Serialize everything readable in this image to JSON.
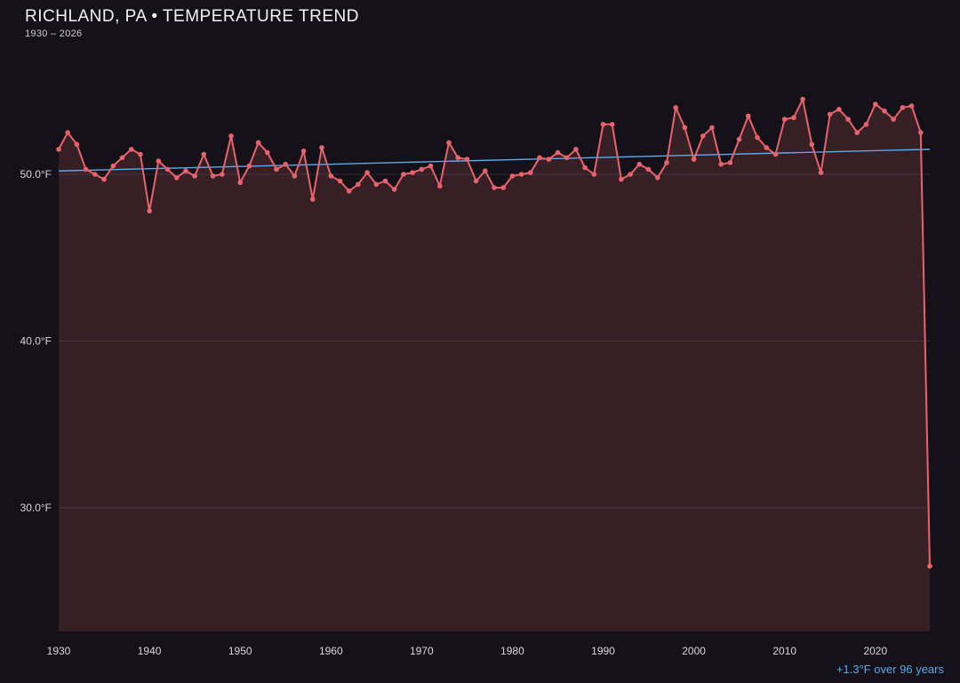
{
  "header": {
    "title": "RICHLAND, PA • TEMPERATURE TREND",
    "subtitle": "1930 – 2026"
  },
  "footer": {
    "trend_note": "+1.3°F over 96 years"
  },
  "colors": {
    "background": "#141119",
    "line": "#e8636b",
    "point": "#e8636b",
    "area_fill": "#e8636b",
    "trend_line": "#5da9e8",
    "grid": "#ffffff",
    "tick_label": "#d9d5de",
    "title": "#f4f3f6",
    "annotation": "#5da9e8"
  },
  "chart_data": {
    "type": "line",
    "title": "RICHLAND, PA • TEMPERATURE TREND",
    "subtitle": "1930 – 2026",
    "xlabel": "",
    "ylabel": "",
    "legend_position": "none",
    "grid": true,
    "x_ticks": [
      1930,
      1940,
      1950,
      1960,
      1970,
      1980,
      1990,
      2000,
      2010,
      2020
    ],
    "y_ticks": [
      {
        "value": 50,
        "label": "50.0°F"
      },
      {
        "value": 40,
        "label": "40.0°F"
      },
      {
        "value": 30,
        "label": "30.0°F"
      }
    ],
    "x_range": [
      1930,
      2026
    ],
    "ylim": [
      22.6,
      57.3
    ],
    "x": [
      1930,
      1931,
      1932,
      1933,
      1934,
      1935,
      1936,
      1937,
      1938,
      1939,
      1940,
      1941,
      1942,
      1943,
      1944,
      1945,
      1946,
      1947,
      1948,
      1949,
      1950,
      1951,
      1952,
      1953,
      1954,
      1955,
      1956,
      1957,
      1958,
      1959,
      1960,
      1961,
      1962,
      1963,
      1964,
      1965,
      1966,
      1967,
      1968,
      1969,
      1970,
      1971,
      1972,
      1973,
      1974,
      1975,
      1976,
      1977,
      1978,
      1979,
      1980,
      1981,
      1982,
      1983,
      1984,
      1985,
      1986,
      1987,
      1988,
      1989,
      1990,
      1991,
      1992,
      1993,
      1994,
      1995,
      1996,
      1997,
      1998,
      1999,
      2000,
      2001,
      2002,
      2003,
      2004,
      2005,
      2006,
      2007,
      2008,
      2009,
      2010,
      2011,
      2012,
      2013,
      2014,
      2015,
      2016,
      2017,
      2018,
      2019,
      2020,
      2021,
      2022,
      2023,
      2024,
      2025,
      2026
    ],
    "series": [
      {
        "name": "annual-mean-temperature",
        "values": [
          51.5,
          52.5,
          51.8,
          50.3,
          50.0,
          49.7,
          50.5,
          51.0,
          51.5,
          51.2,
          47.8,
          50.8,
          50.3,
          49.8,
          50.2,
          49.9,
          51.2,
          49.9,
          50.0,
          52.3,
          49.5,
          50.5,
          51.9,
          51.3,
          50.3,
          50.6,
          49.9,
          51.4,
          48.5,
          51.6,
          49.9,
          49.6,
          49.0,
          49.4,
          50.1,
          49.4,
          49.6,
          49.1,
          50.0,
          50.1,
          50.3,
          50.5,
          49.3,
          51.9,
          51.0,
          50.9,
          49.6,
          50.2,
          49.2,
          49.2,
          49.9,
          50.0,
          50.1,
          51.0,
          50.9,
          51.3,
          51.0,
          51.5,
          50.4,
          50.0,
          53.0,
          53.0,
          49.7,
          50.0,
          50.6,
          50.3,
          49.8,
          50.7,
          54.0,
          52.8,
          50.9,
          52.3,
          52.8,
          50.6,
          50.7,
          52.1,
          53.5,
          52.2,
          51.6,
          51.2,
          53.3,
          53.4,
          54.5,
          51.8,
          50.1,
          53.6,
          53.9,
          53.3,
          52.5,
          53.0,
          54.2,
          53.8,
          53.3,
          54.0,
          54.1,
          52.5,
          26.5
        ]
      }
    ],
    "trend": {
      "name": "linear-trend",
      "start_year": 1930,
      "end_year": 2026,
      "start_value": 50.2,
      "end_value": 51.5,
      "annotation": "+1.3°F over 96 years"
    }
  }
}
